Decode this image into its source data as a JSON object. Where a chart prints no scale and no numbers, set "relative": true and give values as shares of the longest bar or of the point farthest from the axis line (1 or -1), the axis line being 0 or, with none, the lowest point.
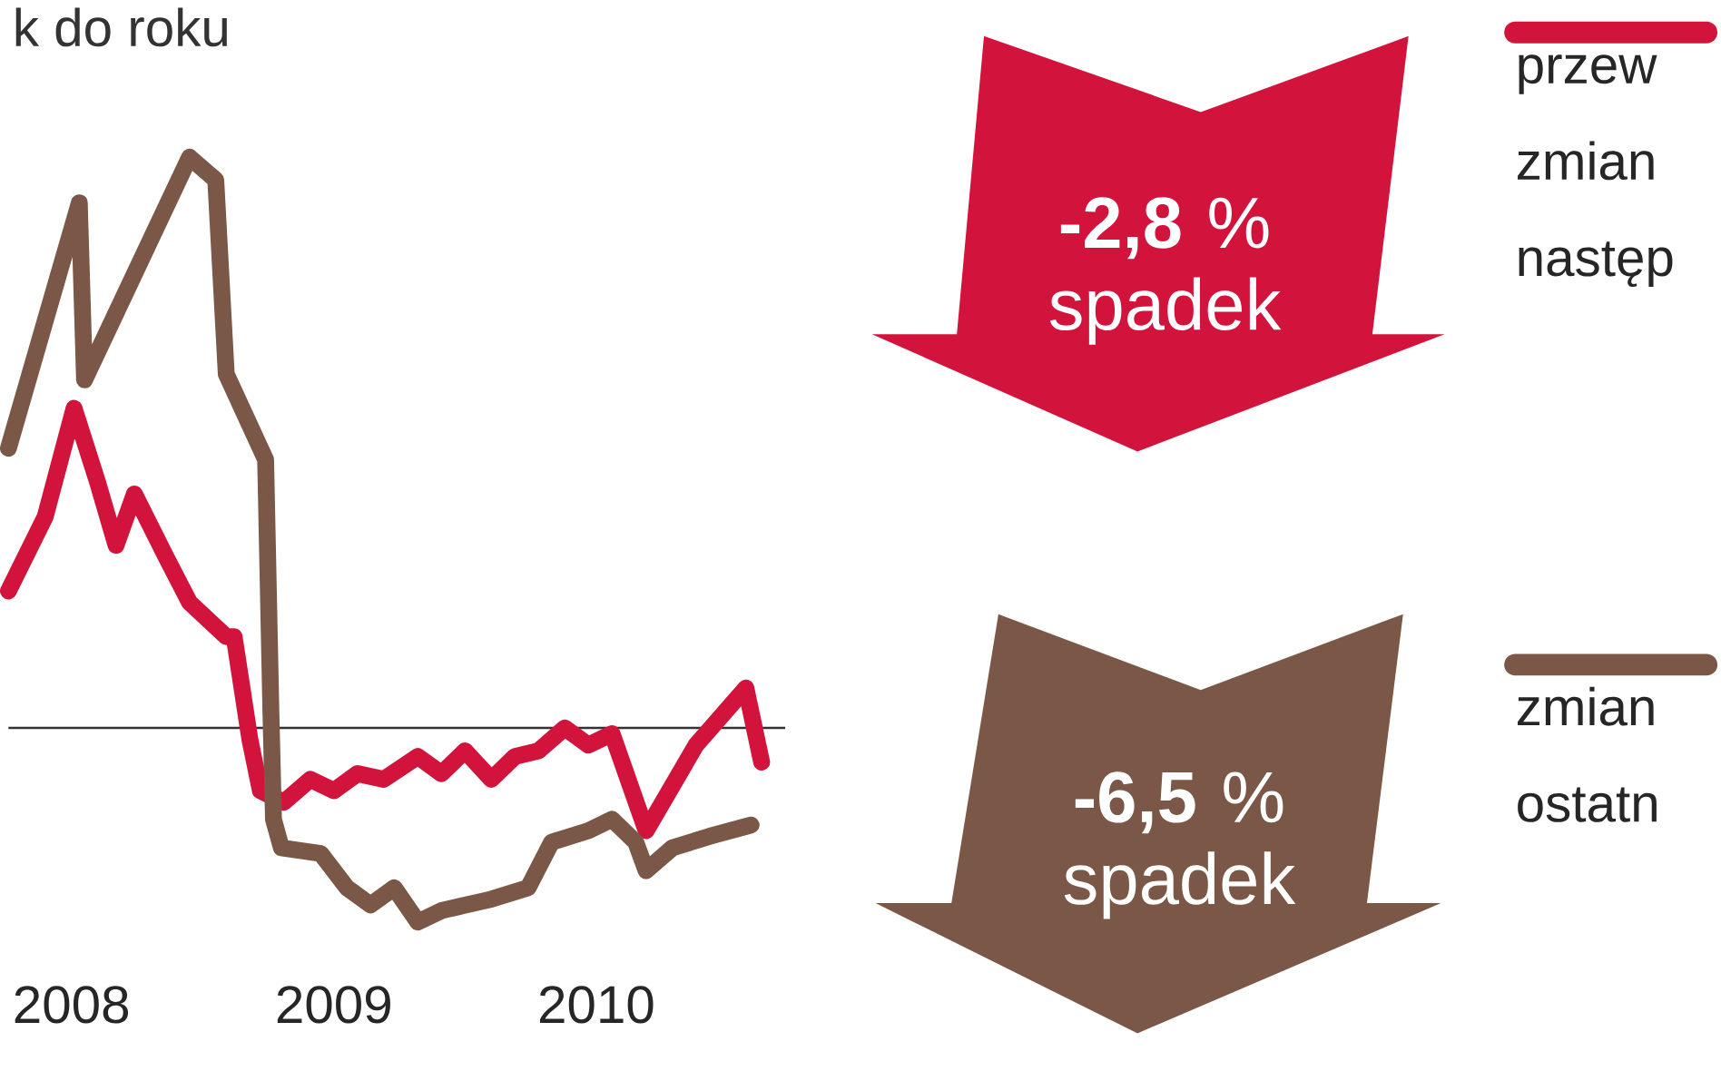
{
  "chart_data": {
    "type": "line",
    "title": "k do roku",
    "relative": true,
    "xlim": [
      2007.76,
      2010.72
    ],
    "xticks": [
      2008,
      2009,
      2010
    ],
    "tick_labels": "x",
    "legend": "right",
    "marker": "none",
    "line_style": "solid",
    "series": [
      {
        "name": "przew zmian następ",
        "color": "#d2143c",
        "x": [
          2007.76,
          2007.9,
          2008.01,
          2008.1,
          2008.17,
          2008.24,
          2008.36,
          2008.45,
          2008.59,
          2008.62,
          2008.68,
          2008.72,
          2008.81,
          2008.91,
          2009,
          2009.09,
          2009.19,
          2009.32,
          2009.41,
          2009.5,
          2009.6,
          2009.69,
          2009.78,
          2009.88,
          2009.97,
          2010.06,
          2010.19,
          2010.38,
          2010.57,
          2010.63
        ],
        "values": [
          0.24,
          0.37,
          0.56,
          0.43,
          0.32,
          0.41,
          0.3,
          0.22,
          0.16,
          0.16,
          -0.02,
          -0.11,
          -0.13,
          -0.09,
          -0.11,
          -0.08,
          -0.09,
          -0.05,
          -0.08,
          -0.04,
          -0.09,
          -0.05,
          -0.04,
          0,
          -0.03,
          -0.01,
          -0.18,
          -0.03,
          0.07,
          -0.06
        ]
      },
      {
        "name": "zmian ostatn",
        "color": "#7a5746",
        "x": [
          2007.76,
          2008.03,
          2008.05,
          2008.45,
          2008.55,
          2008.59,
          2008.74,
          2008.76,
          2008.77,
          2008.8,
          2008.95,
          2009.05,
          2009.14,
          2009.23,
          2009.32,
          2009.41,
          2009.6,
          2009.74,
          2009.83,
          2009.97,
          2010.06,
          2010.15,
          2010.19,
          2010.29,
          2010.43,
          2010.59
        ],
        "values": [
          0.49,
          0.92,
          0.61,
          1,
          0.96,
          0.62,
          0.47,
          0.03,
          -0.16,
          -0.21,
          -0.22,
          -0.28,
          -0.31,
          -0.28,
          -0.34,
          -0.32,
          -0.3,
          -0.28,
          -0.2,
          -0.18,
          -0.16,
          -0.2,
          -0.25,
          -0.21,
          -0.19,
          -0.17
        ]
      }
    ],
    "annotations": [
      "**-2,8** % spadek",
      "**-6,5** % spadek"
    ]
  }
}
